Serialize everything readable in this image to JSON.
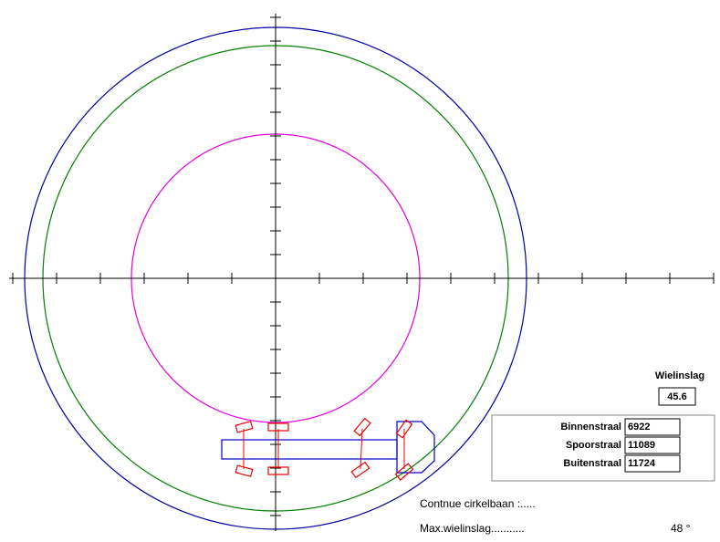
{
  "panel": {
    "wheel_angle_label": "Wielinslag",
    "wheel_angle": 45.6,
    "rows": [
      {
        "label": "Binnenstraal",
        "value": 6922
      },
      {
        "label": "Spoorstraal",
        "value": 11089
      },
      {
        "label": "Buitenstraal",
        "value": 11724
      }
    ]
  },
  "info": {
    "continuous": "Contnue cirkelbaan :.....",
    "max_angle_label": "Max.wielinslag...........",
    "max_angle": "48 °"
  }
}
